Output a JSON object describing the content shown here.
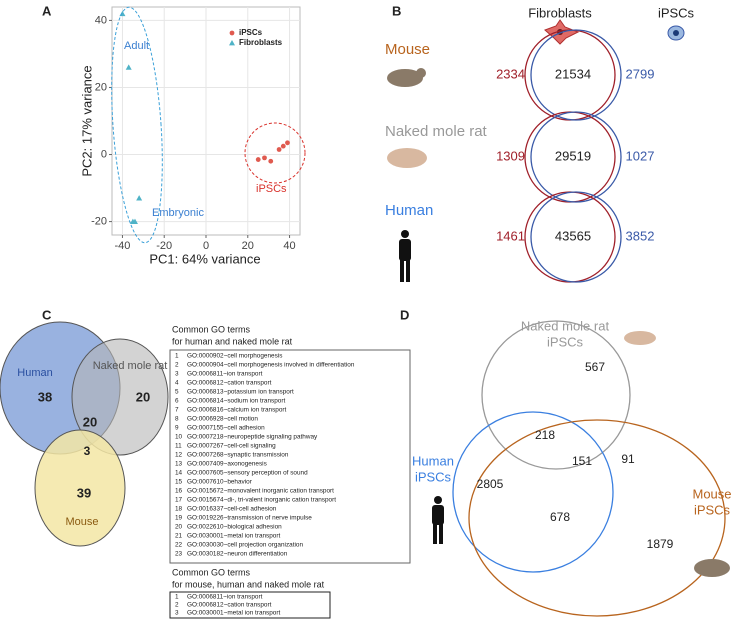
{
  "panel_labels": [
    "A",
    "B",
    "C",
    "D"
  ],
  "chart_data": {
    "type": "scatter",
    "x_label": "PC1: 64% variance",
    "y_label": "PC2: 17% variance",
    "xlim": [
      -45,
      45
    ],
    "xticks": [
      -40,
      -20,
      0,
      20,
      40
    ],
    "ylim": [
      -24,
      44
    ],
    "yticks": [
      -20,
      0,
      20,
      40
    ],
    "grid": true,
    "series": [
      {
        "name": "iPSCs",
        "color": "#e05a4f",
        "marker": "circle",
        "x": [
          25,
          28,
          31,
          35,
          37,
          39
        ],
        "values": [
          -1.5,
          -1,
          -2,
          1.5,
          2.5,
          3.5
        ]
      },
      {
        "name": "Fibroblasts",
        "color": "#4fb3c7",
        "marker": "triangle",
        "x": [
          -40,
          -37,
          -32,
          -34,
          -35
        ],
        "values": [
          42,
          26,
          -13,
          -20,
          -20
        ]
      }
    ],
    "annotations": [
      "Adult",
      "Embryonic",
      "iPSCs"
    ]
  },
  "panel_b": {
    "headers": [
      "Fibroblasts",
      "iPSCs"
    ],
    "rows": [
      {
        "species": "Mouse",
        "fibroblasts_only": 2334,
        "shared": 21534,
        "ipscs_only": 2799
      },
      {
        "species": "Naked mole rat",
        "fibroblasts_only": 1309,
        "shared": 29519,
        "ipscs_only": 1027
      },
      {
        "species": "Human",
        "fibroblasts_only": 1461,
        "shared": 43565,
        "ipscs_only": 3852
      }
    ]
  },
  "panel_c": {
    "venn": {
      "human_label": "Human",
      "nmr_label": "Naked mole rat",
      "mouse_label": "Mouse",
      "human_only": 38,
      "nmr_only": 20,
      "human_nmr": 20,
      "all": 3,
      "mouse_only": 39
    },
    "table1": {
      "title_lines": [
        "Common GO terms",
        "for human and naked mole rat"
      ],
      "rows": [
        [
          1,
          "GO:0000902~cell morphogenesis"
        ],
        [
          2,
          "GO:0000904~cell morphogenesis involved in differentiation"
        ],
        [
          3,
          "GO:0006811~ion transport"
        ],
        [
          4,
          "GO:0006812~cation transport"
        ],
        [
          5,
          "GO:0006813~potassium ion transport"
        ],
        [
          6,
          "GO:0006814~sodium ion transport"
        ],
        [
          7,
          "GO:0006816~calcium ion transport"
        ],
        [
          8,
          "GO:0006928~cell motion"
        ],
        [
          9,
          "GO:0007155~cell adhesion"
        ],
        [
          10,
          "GO:0007218~neuropeptide signaling pathway"
        ],
        [
          11,
          "GO:0007267~cell-cell signaling"
        ],
        [
          12,
          "GO:0007268~synaptic transmission"
        ],
        [
          13,
          "GO:0007409~axonogenesis"
        ],
        [
          14,
          "GO:0007605~sensory perception of sound"
        ],
        [
          15,
          "GO:0007610~behavior"
        ],
        [
          16,
          "GO:0015672~monovalent inorganic cation transport"
        ],
        [
          17,
          "GO:0015674~di-, tri-valent inorganic cation transport"
        ],
        [
          18,
          "GO:0016337~cell-cell adhesion"
        ],
        [
          19,
          "GO:0019226~transmission of nerve impulse"
        ],
        [
          20,
          "GO:0022610~biological adhesion"
        ],
        [
          21,
          "GO:0030001~metal ion transport"
        ],
        [
          22,
          "GO:0030030~cell projection organization"
        ],
        [
          23,
          "GO:0030182~neuron differentiation"
        ]
      ]
    },
    "table2": {
      "title_lines": [
        "Common GO terms",
        "for mouse, human and naked mole rat"
      ],
      "rows": [
        [
          1,
          "GO:0006811~ion transport"
        ],
        [
          2,
          "GO:0006812~cation transport"
        ],
        [
          3,
          "GO:0030001~metal ion transport"
        ]
      ]
    }
  },
  "panel_d": {
    "nmr_label": [
      "Naked mole rat",
      "iPSCs"
    ],
    "human_label": [
      "Human",
      "iPSCs"
    ],
    "mouse_label": [
      "Mouse",
      "iPSCs"
    ],
    "nmr_only": 567,
    "human_nmr": 218,
    "all": 151,
    "nmr_mouse": 91,
    "human_only": 2805,
    "human_mouse": 678,
    "mouse_only": 1879
  }
}
